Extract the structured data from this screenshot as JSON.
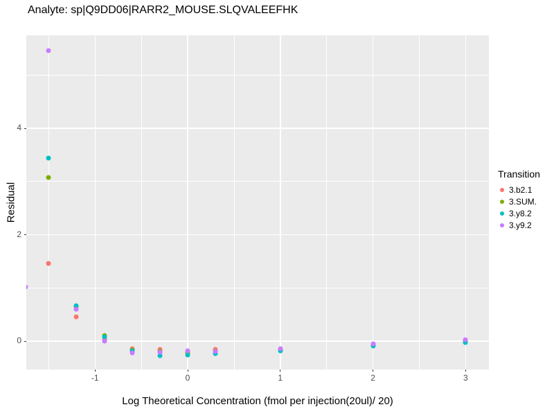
{
  "chart_data": {
    "type": "scatter",
    "title": "Analyte: sp|Q9DD06|RARR2_MOUSE.SLQVALEEFHK",
    "xlabel": "Log Theoretical Concentration (fmol per injection(20ul)/ 20)",
    "ylabel": "Residual",
    "xlim": [
      -1.742,
      3.252
    ],
    "ylim": [
      -0.534,
      5.746
    ],
    "x_ticks": [
      -1,
      0,
      1,
      2,
      3
    ],
    "y_ticks": [
      0,
      2,
      4
    ],
    "x_minor_gridlines": [
      -1.5,
      -0.5,
      0.5,
      1.5,
      2.5
    ],
    "y_minor_gridlines": [
      1,
      3,
      5
    ],
    "grid": true,
    "panel_background": "#EBEBEB",
    "gridline_color": "#FFFFFF",
    "tick_label_color": "#4D4D4D",
    "legend_title": "Transition",
    "legend_position": "right",
    "series": [
      {
        "name": "3.b2.1",
        "color": "#F8766D",
        "points": [
          [
            -1.5,
            1.46
          ],
          [
            -1.2,
            0.46
          ],
          [
            -0.9,
            0.02
          ],
          [
            -0.6,
            -0.14
          ],
          [
            -0.3,
            -0.15
          ],
          [
            0,
            -0.2
          ],
          [
            0.3,
            -0.16
          ],
          [
            1,
            -0.16
          ],
          [
            2,
            -0.07
          ],
          [
            3,
            0.0
          ]
        ]
      },
      {
        "name": "3.SUM.",
        "color": "#7CAE00",
        "points": [
          [
            -1.5,
            3.08
          ],
          [
            -1.2,
            0.64
          ],
          [
            -0.9,
            0.1
          ],
          [
            -0.6,
            -0.17
          ],
          [
            -0.3,
            -0.2
          ],
          [
            0,
            -0.22
          ],
          [
            0.3,
            -0.2
          ],
          [
            1,
            -0.16
          ],
          [
            2,
            -0.08
          ],
          [
            3,
            0.0
          ]
        ]
      },
      {
        "name": "3.y8.2",
        "color": "#00BFC4",
        "points": [
          [
            -1.5,
            3.44
          ],
          [
            -1.2,
            0.66
          ],
          [
            -0.9,
            0.08
          ],
          [
            -0.6,
            -0.18
          ],
          [
            -0.3,
            -0.27
          ],
          [
            0,
            -0.26
          ],
          [
            0.3,
            -0.24
          ],
          [
            1,
            -0.18
          ],
          [
            2,
            -0.09
          ],
          [
            3,
            -0.02
          ]
        ]
      },
      {
        "name": "3.y9.2",
        "color": "#C77CFF",
        "points": [
          [
            -1.75,
            1.02
          ],
          [
            -1.5,
            5.46
          ],
          [
            -1.2,
            0.6
          ],
          [
            -0.9,
            0.0
          ],
          [
            -0.6,
            -0.22
          ],
          [
            -0.3,
            -0.21
          ],
          [
            0,
            -0.18
          ],
          [
            0.3,
            -0.2
          ],
          [
            1,
            -0.14
          ],
          [
            2,
            -0.05
          ],
          [
            3,
            0.02
          ]
        ]
      }
    ]
  }
}
